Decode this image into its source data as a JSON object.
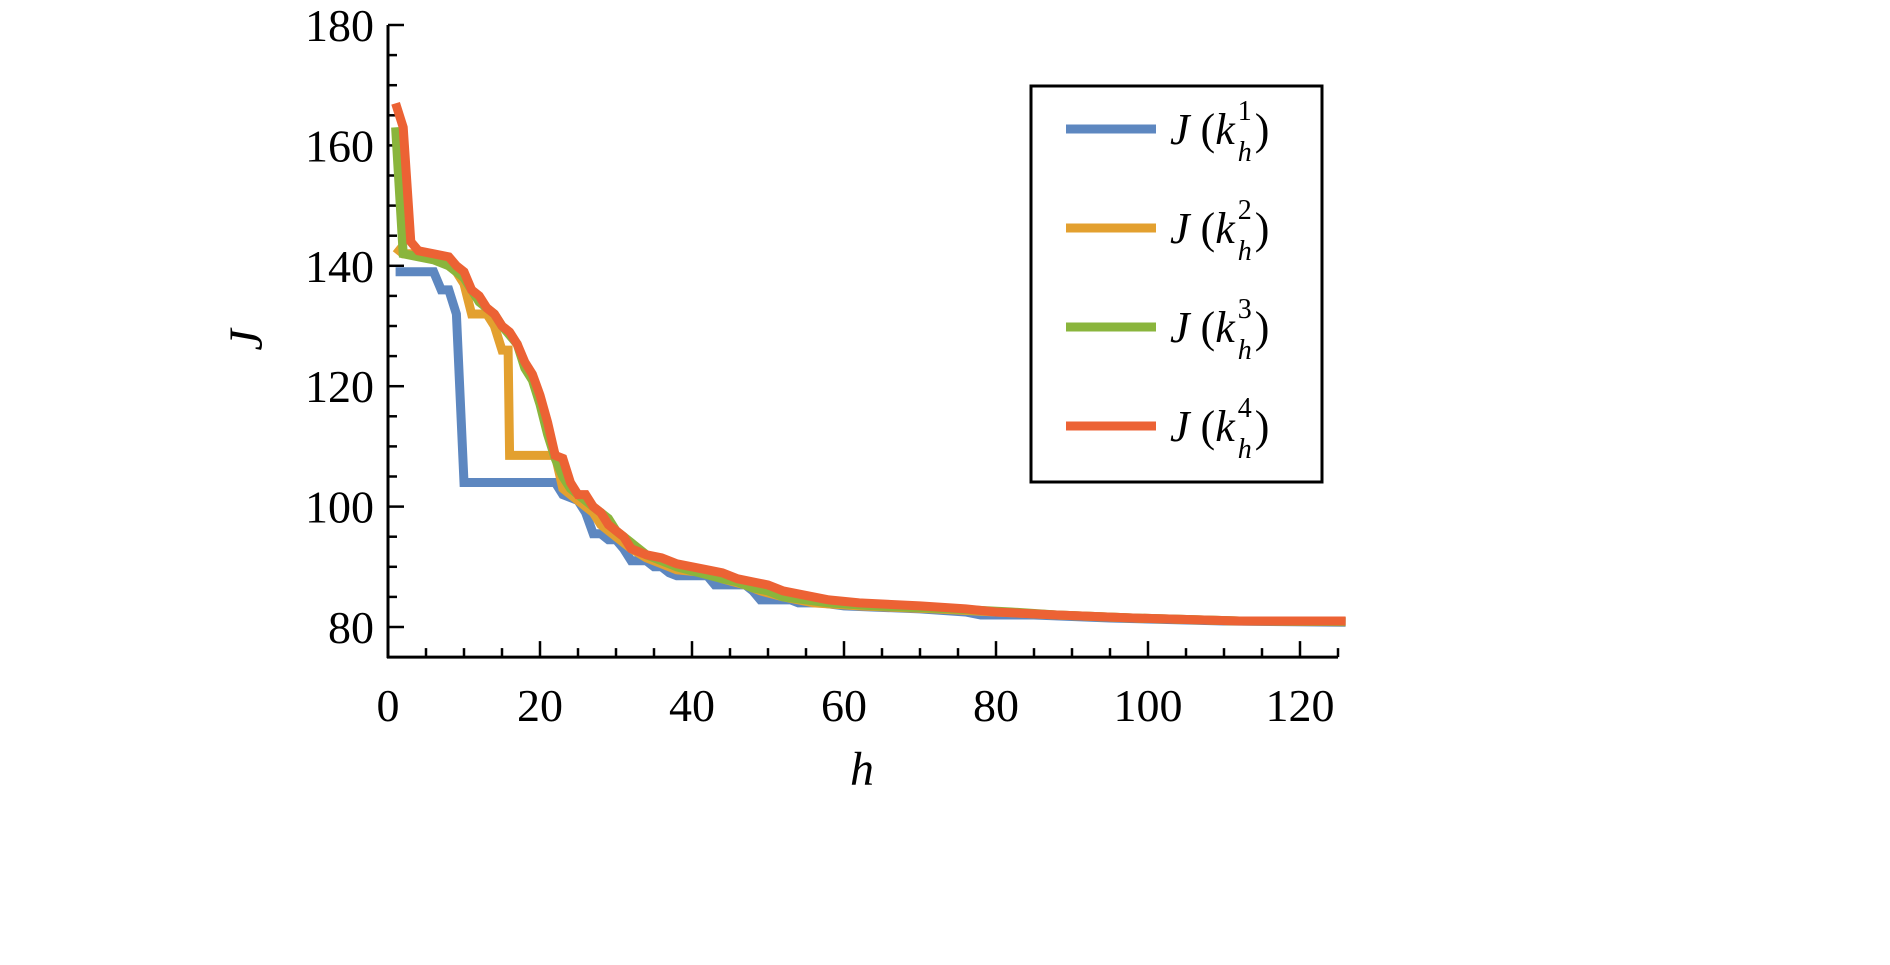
{
  "chart_data": {
    "type": "line",
    "title": "",
    "xlabel": "h",
    "ylabel": "J",
    "xlim": [
      0,
      125
    ],
    "ylim": [
      75,
      180
    ],
    "x_ticks": [
      0,
      20,
      40,
      60,
      80,
      100,
      120
    ],
    "y_ticks": [
      80,
      100,
      120,
      140,
      160,
      180
    ],
    "x_minor_step": 5,
    "y_minor_step": 5,
    "grid": false,
    "legend_placement": "top-right",
    "series": [
      {
        "name": "J (k_h^1)",
        "label_main": "J (k",
        "sup": "1",
        "sub": "h",
        "color": "#5d87c0",
        "points": [
          [
            1,
            139
          ],
          [
            6,
            139
          ],
          [
            7,
            136
          ],
          [
            8,
            136
          ],
          [
            9,
            132
          ],
          [
            10,
            104
          ],
          [
            22,
            104
          ],
          [
            23,
            102
          ],
          [
            25,
            101
          ],
          [
            26,
            99
          ],
          [
            27,
            95.5
          ],
          [
            28,
            95.5
          ],
          [
            29,
            94.5
          ],
          [
            30,
            94.5
          ],
          [
            31,
            93
          ],
          [
            32,
            91
          ],
          [
            34,
            91
          ],
          [
            35,
            90
          ],
          [
            36,
            90
          ],
          [
            37,
            89
          ],
          [
            38,
            88.5
          ],
          [
            42,
            88.5
          ],
          [
            43,
            87
          ],
          [
            47,
            87
          ],
          [
            48,
            86
          ],
          [
            49,
            84.5
          ],
          [
            53,
            84.5
          ],
          [
            54,
            84
          ],
          [
            57,
            84
          ],
          [
            60,
            83.5
          ],
          [
            70,
            83
          ],
          [
            76,
            82.5
          ],
          [
            78,
            82
          ],
          [
            85,
            82
          ],
          [
            95,
            81.5
          ],
          [
            110,
            81
          ],
          [
            126,
            80.8
          ]
        ]
      },
      {
        "name": "J (k_h^2)",
        "label_main": "J (k",
        "sup": "2",
        "sub": "h",
        "color": "#e3a02f",
        "points": [
          [
            1,
            143
          ],
          [
            2,
            142
          ],
          [
            5,
            142
          ],
          [
            7,
            141
          ],
          [
            9,
            139
          ],
          [
            10,
            137
          ],
          [
            11,
            132
          ],
          [
            13,
            132
          ],
          [
            14,
            130
          ],
          [
            15,
            126
          ],
          [
            15.8,
            126
          ],
          [
            16,
            108.5
          ],
          [
            22,
            108.5
          ],
          [
            23,
            103
          ],
          [
            25,
            101
          ],
          [
            27,
            99
          ],
          [
            28,
            97
          ],
          [
            30,
            95
          ],
          [
            32,
            93
          ],
          [
            34,
            91.5
          ],
          [
            36,
            90.5
          ],
          [
            38,
            89.5
          ],
          [
            42,
            89
          ],
          [
            44,
            88
          ],
          [
            47,
            87
          ],
          [
            49,
            86
          ],
          [
            52,
            85
          ],
          [
            56,
            84
          ],
          [
            62,
            83.5
          ],
          [
            72,
            83
          ],
          [
            80,
            82.5
          ],
          [
            88,
            82
          ],
          [
            98,
            81.5
          ],
          [
            112,
            81
          ],
          [
            126,
            80.9
          ]
        ]
      },
      {
        "name": "J (k_h^3)",
        "label_main": "J (k",
        "sup": "3",
        "sub": "h",
        "color": "#8ab53c",
        "points": [
          [
            1,
            163
          ],
          [
            2,
            142
          ],
          [
            4,
            141.5
          ],
          [
            6,
            141
          ],
          [
            8,
            140
          ],
          [
            10,
            138
          ],
          [
            11,
            136
          ],
          [
            12,
            134
          ],
          [
            14,
            132
          ],
          [
            15,
            130
          ],
          [
            17,
            127
          ],
          [
            18,
            123
          ],
          [
            19,
            121
          ],
          [
            20,
            117
          ],
          [
            21,
            112
          ],
          [
            22,
            108
          ],
          [
            23,
            105
          ],
          [
            24,
            103
          ],
          [
            26,
            101
          ],
          [
            27,
            100
          ],
          [
            29,
            98
          ],
          [
            30,
            96
          ],
          [
            32,
            94
          ],
          [
            34,
            92
          ],
          [
            36,
            91
          ],
          [
            38,
            90
          ],
          [
            41,
            89
          ],
          [
            44,
            88
          ],
          [
            46,
            87.5
          ],
          [
            48,
            86.5
          ],
          [
            50,
            86
          ],
          [
            52,
            85
          ],
          [
            55,
            84.5
          ],
          [
            58,
            84
          ],
          [
            64,
            83.5
          ],
          [
            74,
            83
          ],
          [
            82,
            82.5
          ],
          [
            88,
            82
          ],
          [
            98,
            81.5
          ],
          [
            112,
            81
          ],
          [
            126,
            80.9
          ]
        ]
      },
      {
        "name": "J (k_h^4)",
        "label_main": "J (k",
        "sup": "4",
        "sub": "h",
        "color": "#ec6234",
        "points": [
          [
            1,
            167
          ],
          [
            2,
            163
          ],
          [
            3,
            144
          ],
          [
            4,
            142.5
          ],
          [
            6,
            142
          ],
          [
            8,
            141.5
          ],
          [
            9,
            140
          ],
          [
            10,
            139
          ],
          [
            11,
            136
          ],
          [
            12,
            135
          ],
          [
            13,
            133
          ],
          [
            14,
            132
          ],
          [
            15,
            130
          ],
          [
            16,
            129
          ],
          [
            17,
            127
          ],
          [
            18,
            124
          ],
          [
            19,
            122
          ],
          [
            20,
            118.5
          ],
          [
            21,
            114
          ],
          [
            22,
            108.5
          ],
          [
            23,
            108
          ],
          [
            24,
            104
          ],
          [
            25,
            102
          ],
          [
            26,
            102
          ],
          [
            27,
            100
          ],
          [
            28,
            99
          ],
          [
            29,
            97
          ],
          [
            30,
            96
          ],
          [
            31,
            95
          ],
          [
            32,
            93
          ],
          [
            34,
            92
          ],
          [
            36,
            91.5
          ],
          [
            38,
            90.5
          ],
          [
            40,
            90
          ],
          [
            42,
            89.5
          ],
          [
            44,
            89
          ],
          [
            46,
            88
          ],
          [
            48,
            87.5
          ],
          [
            50,
            87
          ],
          [
            52,
            86
          ],
          [
            54,
            85.5
          ],
          [
            56,
            85
          ],
          [
            58,
            84.5
          ],
          [
            62,
            84
          ],
          [
            70,
            83.5
          ],
          [
            76,
            83
          ],
          [
            80,
            82.5
          ],
          [
            88,
            82
          ],
          [
            98,
            81.5
          ],
          [
            112,
            81
          ],
          [
            126,
            81
          ]
        ]
      }
    ]
  }
}
